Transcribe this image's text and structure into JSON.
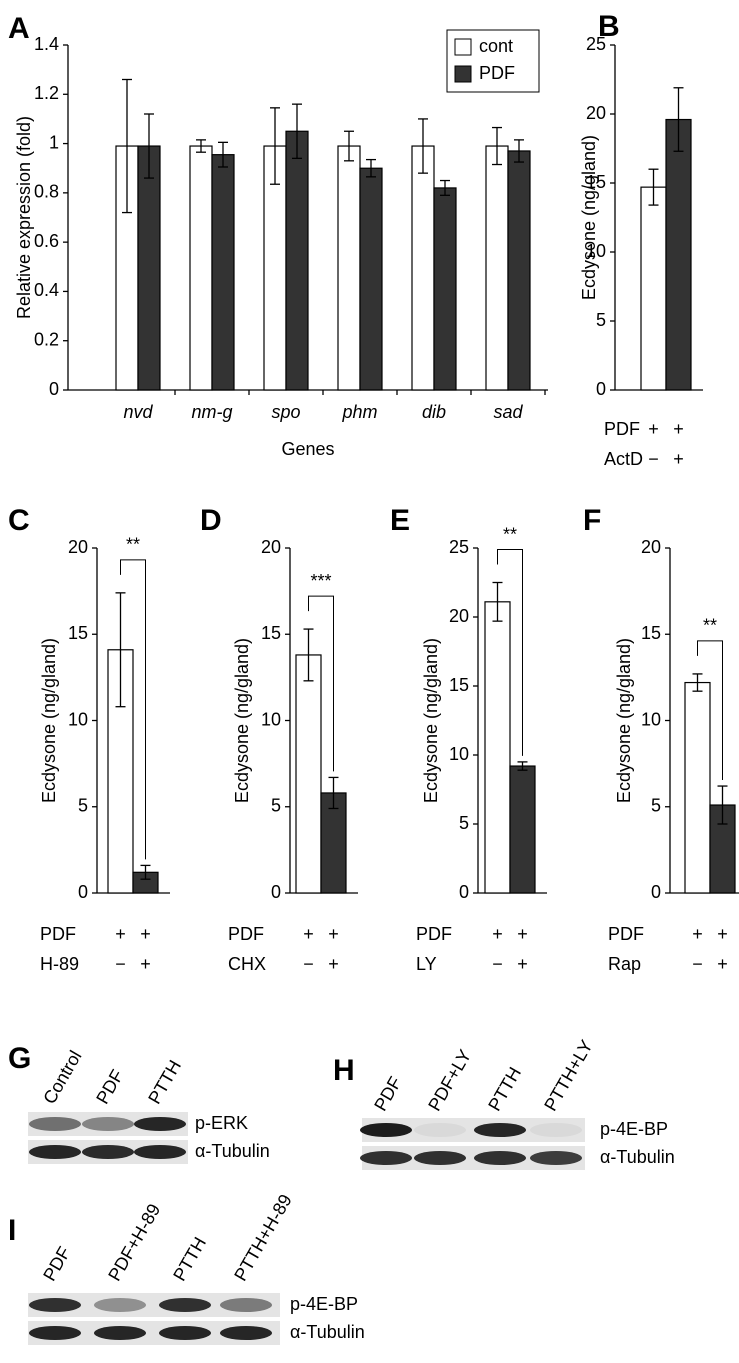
{
  "chart_data": [
    {
      "type": "bar",
      "panel": "A",
      "ylabel": "Relative expression (fold)",
      "xlabel": "Genes",
      "categories": [
        "nvd",
        "nm-g",
        "spo",
        "phm",
        "dib",
        "sad"
      ],
      "series": [
        {
          "name": "cont",
          "color": "#ffffff",
          "values": [
            0.99,
            0.99,
            0.99,
            0.99,
            0.99,
            0.99
          ],
          "errors": [
            0.27,
            0.025,
            0.155,
            0.06,
            0.11,
            0.075
          ]
        },
        {
          "name": "PDF",
          "color": "#333333",
          "values": [
            0.99,
            0.955,
            1.05,
            0.9,
            0.82,
            0.97
          ],
          "errors": [
            0.13,
            0.05,
            0.11,
            0.035,
            0.03,
            0.045
          ]
        }
      ],
      "ylim": [
        0,
        1.4
      ],
      "yticks": [
        0,
        0.2,
        0.4,
        0.6,
        0.8,
        1,
        1.2,
        1.4
      ],
      "legend": "top-right"
    },
    {
      "type": "bar",
      "panel": "B",
      "ylabel": "Ecdysone (ng/gland)",
      "colors": [
        "#ffffff",
        "#333333"
      ],
      "values": [
        14.7,
        19.6
      ],
      "errors": [
        1.3,
        2.3
      ],
      "ylim": [
        0,
        25
      ],
      "yticks": [
        0,
        5,
        10,
        15,
        20,
        25
      ],
      "conditions": [
        {
          "name": "PDF",
          "marks": [
            "+",
            "+"
          ]
        },
        {
          "name": "ActD",
          "marks": [
            "−",
            "+"
          ]
        }
      ]
    },
    {
      "type": "bar",
      "panel": "C",
      "ylabel": "Ecdysone (ng/gland)",
      "colors": [
        "#ffffff",
        "#333333"
      ],
      "values": [
        14.1,
        1.2
      ],
      "errors": [
        3.3,
        0.4
      ],
      "ylim": [
        0,
        20
      ],
      "yticks": [
        0,
        5,
        10,
        15,
        20
      ],
      "significance": "**",
      "conditions": [
        {
          "name": "PDF",
          "marks": [
            "+",
            "+"
          ]
        },
        {
          "name": "H-89",
          "marks": [
            "−",
            "+"
          ]
        }
      ]
    },
    {
      "type": "bar",
      "panel": "D",
      "ylabel": "Ecdysone (ng/gland)",
      "colors": [
        "#ffffff",
        "#333333"
      ],
      "values": [
        13.8,
        5.8
      ],
      "errors": [
        1.5,
        0.9
      ],
      "ylim": [
        0,
        20
      ],
      "yticks": [
        0,
        5,
        10,
        15,
        20
      ],
      "significance": "***",
      "conditions": [
        {
          "name": "PDF",
          "marks": [
            "+",
            "+"
          ]
        },
        {
          "name": "CHX",
          "marks": [
            "−",
            "+"
          ]
        }
      ]
    },
    {
      "type": "bar",
      "panel": "E",
      "ylabel": "Ecdysone (ng/gland)",
      "colors": [
        "#ffffff",
        "#333333"
      ],
      "values": [
        21.1,
        9.2
      ],
      "errors": [
        1.4,
        0.3
      ],
      "ylim": [
        0,
        25
      ],
      "yticks": [
        0,
        5,
        10,
        15,
        20,
        25
      ],
      "significance": "**",
      "conditions": [
        {
          "name": "PDF",
          "marks": [
            "+",
            "+"
          ]
        },
        {
          "name": "LY",
          "marks": [
            "−",
            "+"
          ]
        }
      ]
    },
    {
      "type": "bar",
      "panel": "F",
      "ylabel": "Ecdysone (ng/gland)",
      "colors": [
        "#ffffff",
        "#333333"
      ],
      "values": [
        12.2,
        5.1
      ],
      "errors": [
        0.5,
        1.1
      ],
      "ylim": [
        0,
        20
      ],
      "yticks": [
        0,
        5,
        10,
        15,
        20
      ],
      "significance": "**",
      "conditions": [
        {
          "name": "PDF",
          "marks": [
            "+",
            "+"
          ]
        },
        {
          "name": "Rap",
          "marks": [
            "−",
            "+"
          ]
        }
      ]
    }
  ],
  "blots": [
    {
      "panel": "G",
      "lanes": [
        "Control",
        "PDF",
        "PTTH"
      ],
      "bands": [
        "p-ERK",
        "α-Tubulin"
      ]
    },
    {
      "panel": "H",
      "lanes": [
        "PDF",
        "PDF+LY",
        "PTTH",
        "PTTH+LY"
      ],
      "bands": [
        "p-4E-BP",
        "α-Tubulin"
      ]
    },
    {
      "panel": "I",
      "lanes": [
        "PDF",
        "PDF+H-89",
        "PTTH",
        "PTTH+H-89"
      ],
      "bands": [
        "p-4E-BP",
        "α-Tubulin"
      ]
    }
  ]
}
